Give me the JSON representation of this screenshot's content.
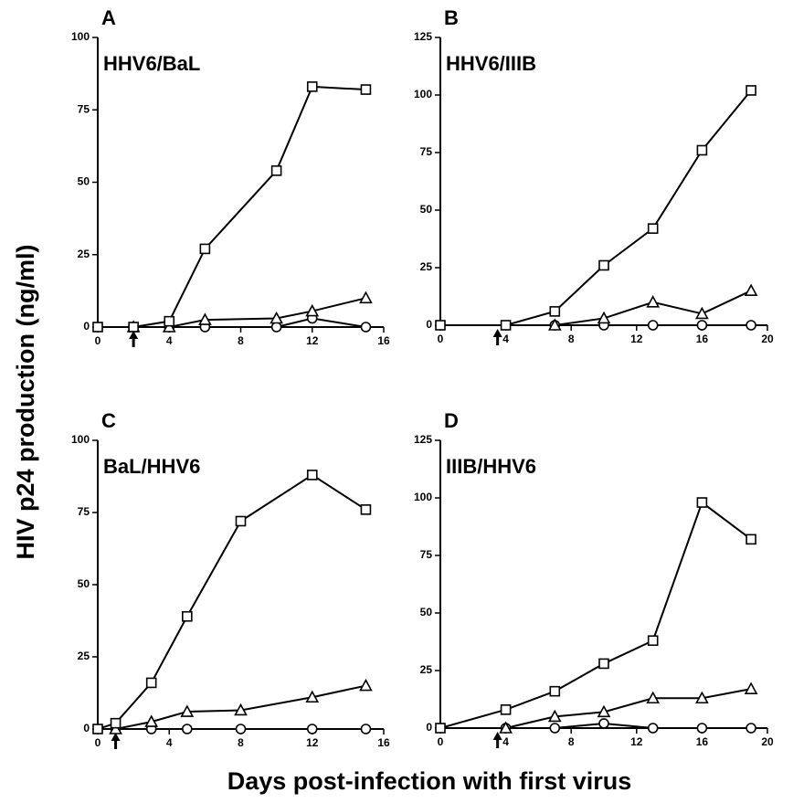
{
  "ylabel": "HIV p24 production (ng/ml)",
  "xlabel": "Days post-infection with first virus",
  "chart_data": [
    {
      "type": "line",
      "panel": "A",
      "title": "HHV6/BaL",
      "x": [
        0,
        2,
        4,
        6,
        10,
        12,
        15
      ],
      "xlim": [
        0,
        16
      ],
      "xticks": [
        0,
        4,
        8,
        12,
        16
      ],
      "ylim": [
        0,
        100
      ],
      "yticks": [
        0,
        25,
        50,
        75,
        100
      ],
      "arrow_x": 2,
      "series": [
        {
          "marker": "square",
          "color": "#000000",
          "values": [
            0,
            0,
            2,
            27,
            54,
            83,
            82
          ]
        },
        {
          "marker": "triangle",
          "color": "#000000",
          "values": [
            null,
            0,
            0,
            2.5,
            3,
            5.5,
            10
          ]
        },
        {
          "marker": "circle",
          "color": "#000000",
          "values": [
            null,
            0,
            0,
            0,
            0,
            3,
            0
          ]
        }
      ]
    },
    {
      "type": "line",
      "panel": "B",
      "title": "HHV6/IIIB",
      "x": [
        0,
        4,
        7,
        10,
        13,
        16,
        19
      ],
      "xlim": [
        0,
        20
      ],
      "xticks": [
        0,
        4,
        8,
        12,
        16,
        20
      ],
      "ylim": [
        0,
        125
      ],
      "yticks": [
        0,
        25,
        50,
        75,
        100,
        125
      ],
      "arrow_x": 3.5,
      "series": [
        {
          "marker": "square",
          "color": "#000000",
          "values": [
            0,
            0,
            6,
            26,
            42,
            76,
            102
          ]
        },
        {
          "marker": "triangle",
          "color": "#000000",
          "values": [
            null,
            null,
            0,
            3,
            10,
            5,
            15
          ]
        },
        {
          "marker": "circle",
          "color": "#000000",
          "values": [
            null,
            null,
            0,
            0,
            0,
            0,
            0
          ]
        }
      ]
    },
    {
      "type": "line",
      "panel": "C",
      "title": "BaL/HHV6",
      "x": [
        0,
        1,
        3,
        5,
        8,
        12,
        15
      ],
      "xlim": [
        0,
        16
      ],
      "xticks": [
        0,
        4,
        8,
        12,
        16
      ],
      "ylim": [
        0,
        100
      ],
      "yticks": [
        0,
        25,
        50,
        75,
        100
      ],
      "arrow_x": 1,
      "series": [
        {
          "marker": "square",
          "color": "#000000",
          "values": [
            0,
            2,
            16,
            39,
            72,
            88,
            76
          ]
        },
        {
          "marker": "triangle",
          "color": "#000000",
          "values": [
            null,
            0,
            2.5,
            6,
            6.5,
            11,
            15
          ]
        },
        {
          "marker": "circle",
          "color": "#000000",
          "values": [
            null,
            0,
            0,
            0,
            0,
            0,
            0
          ]
        }
      ]
    },
    {
      "type": "line",
      "panel": "D",
      "title": "IIIB/HHV6",
      "x": [
        0,
        4,
        7,
        10,
        13,
        16,
        19
      ],
      "xlim": [
        0,
        20
      ],
      "xticks": [
        0,
        4,
        8,
        12,
        16,
        20
      ],
      "ylim": [
        0,
        125
      ],
      "yticks": [
        0,
        25,
        50,
        75,
        100,
        125
      ],
      "arrow_x": 3.5,
      "series": [
        {
          "marker": "square",
          "color": "#000000",
          "values": [
            0,
            8,
            16,
            28,
            38,
            98,
            82
          ]
        },
        {
          "marker": "triangle",
          "color": "#000000",
          "values": [
            null,
            0,
            5,
            7,
            13,
            13,
            17
          ]
        },
        {
          "marker": "circle",
          "color": "#000000",
          "values": [
            null,
            0,
            0,
            2,
            0,
            0,
            0
          ]
        }
      ]
    }
  ]
}
